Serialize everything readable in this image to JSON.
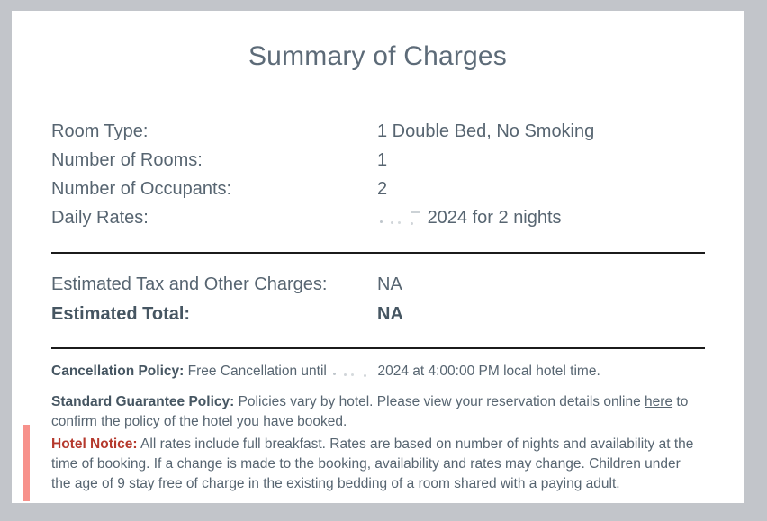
{
  "title": "Summary of Charges",
  "details": {
    "rows": [
      {
        "label": "Room Type:",
        "value": "1 Double Bed, No Smoking"
      },
      {
        "label": "Number of Rooms:",
        "value": "1"
      },
      {
        "label": "Number of Occupants:",
        "value": "2"
      },
      {
        "label": "Daily Rates:",
        "value": "2024 for 2 nights",
        "value_prefix_redacted": true
      }
    ]
  },
  "totals": {
    "rows": [
      {
        "label": "Estimated Tax and Other Charges:",
        "value": "NA",
        "bold": false
      },
      {
        "label": "Estimated Total:",
        "value": "NA",
        "bold": true
      }
    ]
  },
  "policies": {
    "cancellation": {
      "label": "Cancellation Policy:",
      "text_before_redaction": "Free Cancellation until",
      "text_after_redaction": "2024 at 4:00:00 PM local hotel time."
    },
    "guarantee": {
      "label": "Standard Guarantee Policy:",
      "text_before_link": "Policies vary by hotel. Please view your reservation details online",
      "link_text": "here",
      "text_after_link": "to confirm the policy of the hotel you have booked."
    },
    "hotel_notice": {
      "label": "Hotel Notice:",
      "text": "All rates include full breakfast. Rates are based on number of nights and availability at the time of booking. If a change is made to the booking, availability and rates may change. Children under the age of 9 stay free of charge in the existing bedding of a room shared with a paying adult."
    }
  },
  "colors": {
    "page_border": "#c2c5ca",
    "card_background": "#ffffff",
    "heading_text": "#5d6b78",
    "body_text": "#576571",
    "bold_text": "#465662",
    "divider": "#1b1b1b",
    "notice_label_red": "#b5392d",
    "notice_accent_bar": "#f7918b"
  }
}
